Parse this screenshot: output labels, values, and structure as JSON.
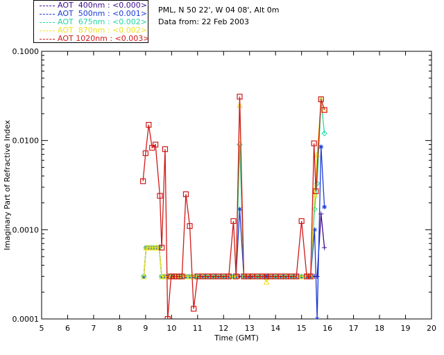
{
  "header": {
    "location": "PML, N 50 22', W 04 08', Alt 0m",
    "date_line": "Data from: 22 Feb 2003"
  },
  "legend": [
    {
      "label": "AOT  400nm : <0.000>",
      "color": "#3a0a8c"
    },
    {
      "label": "AOT  500nm : <0.001>",
      "color": "#1a3ad6"
    },
    {
      "label": "AOT  675nm : <0.002>",
      "color": "#22d6a0"
    },
    {
      "label": "AOT  870nm : <0.002>",
      "color": "#f0e020"
    },
    {
      "label": "AOT 1020nm : <0.003>",
      "color": "#d01818"
    }
  ],
  "chart_data": {
    "type": "line",
    "title": "",
    "xlabel": "Time (GMT)",
    "ylabel": "Imaginary Part of Refractive Index",
    "xlim": [
      5,
      20
    ],
    "ylim": [
      0.0001,
      0.1
    ],
    "yscale": "log",
    "x_ticks": [
      "5",
      "6",
      "7",
      "8",
      "9",
      "10",
      "11",
      "12",
      "13",
      "14",
      "15",
      "16",
      "17",
      "18",
      "19",
      "20"
    ],
    "y_ticks": [
      "0.0001",
      "0.0010",
      "0.0100",
      "0.1000"
    ],
    "series": [
      {
        "name": "AOT  400nm : <0.000>",
        "marker": "plus",
        "color": "#3a0a8c",
        "x": [
          8.93,
          9.02,
          9.12,
          9.22,
          9.32,
          9.42,
          9.52,
          9.62,
          9.72,
          9.85,
          9.98,
          10.1,
          10.2,
          10.3,
          10.4,
          10.55,
          10.7,
          10.85,
          11.0,
          11.2,
          11.4,
          11.6,
          11.8,
          12.0,
          12.2,
          12.38,
          12.48,
          12.62,
          12.78,
          12.95,
          13.1,
          13.3,
          13.5,
          13.65,
          13.8,
          14.0,
          14.2,
          14.4,
          14.6,
          14.8,
          15.0,
          15.2,
          15.35,
          15.5,
          15.6,
          15.75,
          15.88
        ],
        "y": [
          0.0003,
          0.00063,
          0.00063,
          0.00063,
          0.00063,
          0.00063,
          0.00063,
          0.0003,
          0.0003,
          0.0003,
          0.0003,
          0.0003,
          0.0003,
          0.0003,
          0.0003,
          0.0003,
          0.0003,
          0.0003,
          0.0003,
          0.0003,
          0.0003,
          0.0003,
          0.0003,
          0.0003,
          0.0003,
          0.0003,
          0.0003,
          0.0003,
          0.0003,
          0.0003,
          0.0003,
          0.0003,
          0.0003,
          0.0003,
          0.0003,
          0.0003,
          0.0003,
          0.0003,
          0.0003,
          0.0003,
          0.0003,
          0.0003,
          0.0003,
          0.0003,
          0.0003,
          0.0015,
          0.00063
        ]
      },
      {
        "name": "AOT  500nm : <0.001>",
        "marker": "asterisk",
        "color": "#1a3ad6",
        "x": [
          8.93,
          9.02,
          9.12,
          9.22,
          9.32,
          9.42,
          9.52,
          9.62,
          9.72,
          9.85,
          9.98,
          10.1,
          10.2,
          10.3,
          10.4,
          10.55,
          10.7,
          10.85,
          11.0,
          11.2,
          11.4,
          11.6,
          11.8,
          12.0,
          12.2,
          12.38,
          12.48,
          12.62,
          12.78,
          12.95,
          13.1,
          13.3,
          13.5,
          13.65,
          13.8,
          14.0,
          14.2,
          14.4,
          14.6,
          14.8,
          15.0,
          15.2,
          15.35,
          15.5,
          15.6,
          15.75,
          15.88
        ],
        "y": [
          0.0003,
          0.00063,
          0.00063,
          0.00063,
          0.00063,
          0.00063,
          0.00063,
          0.0003,
          0.0003,
          0.0003,
          0.0003,
          0.0003,
          0.0003,
          0.0003,
          0.0003,
          0.0003,
          0.0003,
          0.0003,
          0.0003,
          0.0003,
          0.0003,
          0.0003,
          0.0003,
          0.0003,
          0.0003,
          0.0003,
          0.0003,
          0.0017,
          0.0003,
          0.0003,
          0.0003,
          0.0003,
          0.0003,
          0.0003,
          0.0003,
          0.0003,
          0.0003,
          0.0003,
          0.0003,
          0.0003,
          0.0003,
          0.0003,
          0.0003,
          0.001,
          0.0001,
          0.0085,
          0.0018
        ]
      },
      {
        "name": "AOT  675nm : <0.002>",
        "marker": "diamond",
        "color": "#22d6a0",
        "x": [
          8.93,
          9.02,
          9.12,
          9.22,
          9.32,
          9.42,
          9.52,
          9.62,
          9.72,
          9.85,
          9.98,
          10.1,
          10.2,
          10.3,
          10.4,
          10.55,
          10.7,
          10.85,
          11.0,
          11.2,
          11.4,
          11.6,
          11.8,
          12.0,
          12.2,
          12.38,
          12.48,
          12.62,
          12.78,
          12.95,
          13.1,
          13.3,
          13.5,
          13.65,
          13.8,
          14.0,
          14.2,
          14.4,
          14.6,
          14.8,
          15.0,
          15.2,
          15.35,
          15.5,
          15.6,
          15.75,
          15.88
        ],
        "y": [
          0.0003,
          0.00063,
          0.00063,
          0.00063,
          0.00063,
          0.00063,
          0.00063,
          0.0003,
          0.0003,
          0.0003,
          0.0003,
          0.0003,
          0.0003,
          0.0003,
          0.0003,
          0.0003,
          0.0003,
          0.0003,
          0.0003,
          0.0003,
          0.0003,
          0.0003,
          0.0003,
          0.0003,
          0.0003,
          0.0003,
          0.0003,
          0.009,
          0.0003,
          0.0003,
          0.0003,
          0.0003,
          0.0003,
          0.0003,
          0.0003,
          0.0003,
          0.0003,
          0.0003,
          0.0003,
          0.0003,
          0.0003,
          0.0003,
          0.0003,
          0.0017,
          0.0033,
          0.028,
          0.012
        ]
      },
      {
        "name": "AOT  870nm : <0.002>",
        "marker": "triangle",
        "color": "#f0e020",
        "x": [
          8.93,
          9.02,
          9.12,
          9.22,
          9.32,
          9.42,
          9.52,
          9.62,
          9.72,
          9.85,
          9.98,
          10.1,
          10.2,
          10.3,
          10.4,
          10.55,
          10.7,
          10.85,
          11.0,
          11.2,
          11.4,
          11.6,
          11.8,
          12.0,
          12.2,
          12.38,
          12.48,
          12.62,
          12.78,
          12.95,
          13.1,
          13.3,
          13.5,
          13.65,
          13.8,
          14.0,
          14.2,
          14.4,
          14.6,
          14.8,
          15.0,
          15.2,
          15.35,
          15.5,
          15.6,
          15.75,
          15.88
        ],
        "y": [
          0.0003,
          0.00063,
          0.00063,
          0.00063,
          0.00063,
          0.00063,
          0.00063,
          0.0003,
          0.0003,
          0.0003,
          0.0003,
          0.0003,
          0.0003,
          0.0003,
          0.0003,
          0.0003,
          0.0003,
          0.0003,
          0.0003,
          0.0003,
          0.0003,
          0.0003,
          0.0003,
          0.0003,
          0.0003,
          0.0003,
          0.0003,
          0.025,
          0.0003,
          0.0003,
          0.0003,
          0.0003,
          0.0003,
          0.00026,
          0.0003,
          0.0003,
          0.0003,
          0.0003,
          0.0003,
          0.0003,
          0.0003,
          0.0003,
          0.0003,
          0.0025,
          0.007,
          0.029,
          0.022
        ]
      },
      {
        "name": "AOT 1020nm : <0.003>",
        "marker": "square",
        "color": "#d01818",
        "x": [
          8.9,
          9.0,
          9.12,
          9.25,
          9.38,
          9.55,
          9.62,
          9.75,
          9.85,
          9.98,
          10.1,
          10.2,
          10.3,
          10.4,
          10.55,
          10.7,
          10.85,
          11.0,
          11.2,
          11.4,
          11.6,
          11.8,
          12.0,
          12.2,
          12.38,
          12.48,
          12.62,
          12.78,
          12.95,
          13.1,
          13.3,
          13.5,
          13.65,
          13.8,
          14.0,
          14.2,
          14.4,
          14.6,
          14.8,
          15.0,
          15.2,
          15.35,
          15.48,
          15.55,
          15.75,
          15.88
        ],
        "y": [
          0.0035,
          0.0072,
          0.015,
          0.0083,
          0.009,
          0.0024,
          0.00063,
          0.008,
          0.0001,
          0.0003,
          0.0003,
          0.0003,
          0.0003,
          0.0003,
          0.0025,
          0.0011,
          0.00013,
          0.0003,
          0.0003,
          0.0003,
          0.0003,
          0.0003,
          0.0003,
          0.0003,
          0.00125,
          0.0003,
          0.031,
          0.0003,
          0.0003,
          0.0003,
          0.0003,
          0.0003,
          0.0003,
          0.0003,
          0.0003,
          0.0003,
          0.0003,
          0.0003,
          0.0003,
          0.00125,
          0.0003,
          0.0003,
          0.0093,
          0.0027,
          0.029,
          0.022
        ]
      }
    ]
  }
}
